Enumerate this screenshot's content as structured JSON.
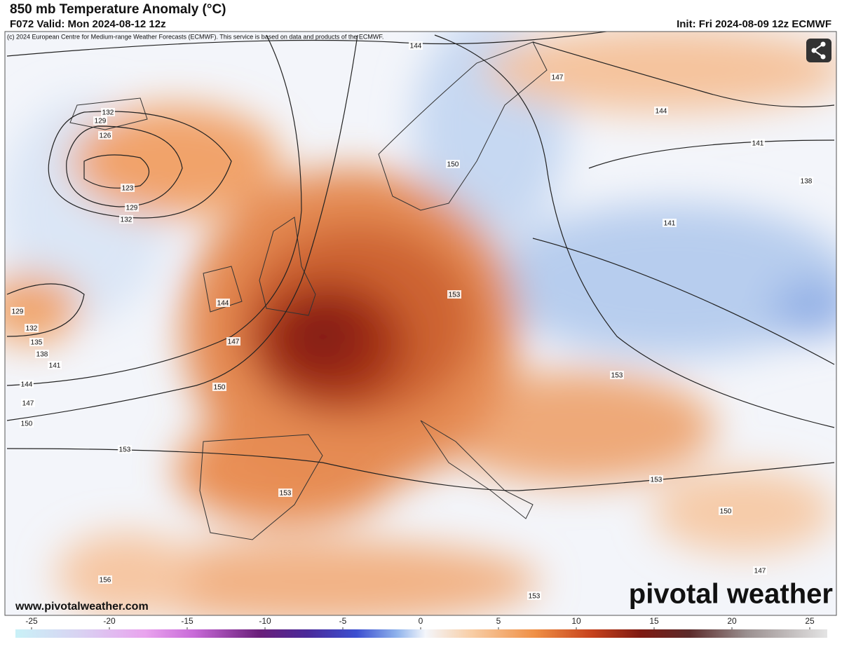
{
  "header": {
    "title": "850 mb Temperature Anomaly (°C)",
    "valid": "F072 Valid: Mon 2024-08-12 12z",
    "init": "Init: Fri 2024-08-09 12z ECMWF",
    "credit": "(c) 2024 European Centre for Medium-range Weather Forecasts (ECMWF). This service is based on data and products of the ECMWF."
  },
  "map": {
    "contour_labels": [
      144,
      147,
      132,
      129,
      126,
      123,
      129,
      132,
      150,
      144,
      141,
      138,
      141,
      129,
      132,
      135,
      138,
      141,
      144,
      147,
      150,
      144,
      147,
      150,
      153,
      153,
      153,
      153,
      153,
      150,
      147,
      156,
      153
    ]
  },
  "footer": {
    "site": "www.pivotalweather.com",
    "logo": "pivotal weather"
  },
  "colorbar": {
    "range": [
      -25,
      25
    ],
    "ticks": [
      -25,
      -20,
      -15,
      -10,
      -5,
      0,
      5,
      10,
      15,
      20,
      25
    ]
  }
}
